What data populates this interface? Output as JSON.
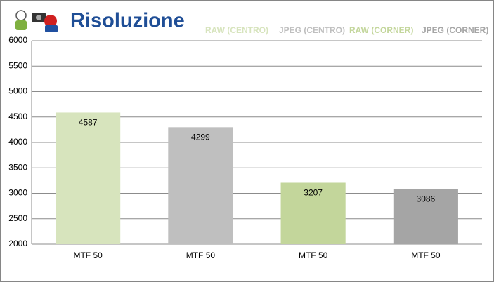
{
  "chart_data": {
    "type": "bar",
    "title": "Risoluzione",
    "categories": [
      "MTF 50",
      "MTF 50",
      "MTF 50",
      "MTF 50"
    ],
    "series": [
      {
        "name": "RAW (CENTRO)",
        "color": "#d7e4bd",
        "values": [
          4587,
          null,
          null,
          null
        ]
      },
      {
        "name": "JPEG (CENTRO)",
        "color": "#bfbfbf",
        "values": [
          null,
          4299,
          null,
          null
        ]
      },
      {
        "name": "RAW (CORNER)",
        "color": "#c3d69b",
        "values": [
          null,
          null,
          3207,
          null
        ]
      },
      {
        "name": "JPEG (CORNER)",
        "color": "#a5a5a5",
        "values": [
          null,
          null,
          null,
          3086
        ]
      }
    ],
    "ylim": [
      2000,
      6000
    ],
    "yticks": [
      2000,
      2500,
      3000,
      3500,
      4000,
      4500,
      5000,
      5500,
      6000
    ],
    "grid": true,
    "legend": "top-right"
  }
}
